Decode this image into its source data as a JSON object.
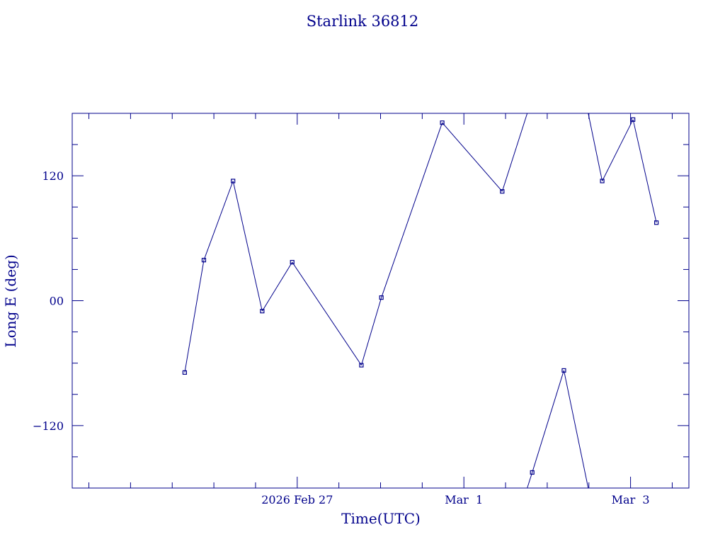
{
  "chart_data": {
    "type": "line",
    "title": "Starlink 36812",
    "xlabel": "Time(UTC)",
    "ylabel": "Long E (deg)",
    "x_tick_labels": [
      {
        "label": "2026 Feb 27",
        "x": 1.0
      },
      {
        "label": "Mar  1",
        "x": 3.0
      },
      {
        "label": "Mar  3",
        "x": 5.0
      }
    ],
    "y_tick_labels": [
      {
        "label": "120",
        "y": 120
      },
      {
        "label": "00",
        "y": 0
      },
      {
        "label": "−120",
        "y": -120
      }
    ],
    "xlim": [
      -1.7,
      5.7
    ],
    "ylim": [
      -180,
      180
    ],
    "x_minor_step": 0.5,
    "y_minor_step": 30,
    "wrap": 360,
    "grid": false,
    "colors": {
      "line": "#00008b",
      "axes": "#00008b",
      "background": "#ffffff"
    },
    "series": [
      {
        "x": [
          -0.35,
          -0.12,
          0.23,
          0.58,
          0.94,
          1.77,
          2.01,
          2.74,
          3.46,
          3.82,
          4.2,
          4.66,
          5.03,
          5.31
        ],
        "y": [
          -69,
          39,
          115,
          -10,
          37,
          -62,
          3,
          171,
          105,
          -165,
          -67,
          115,
          174,
          75
        ]
      }
    ]
  }
}
